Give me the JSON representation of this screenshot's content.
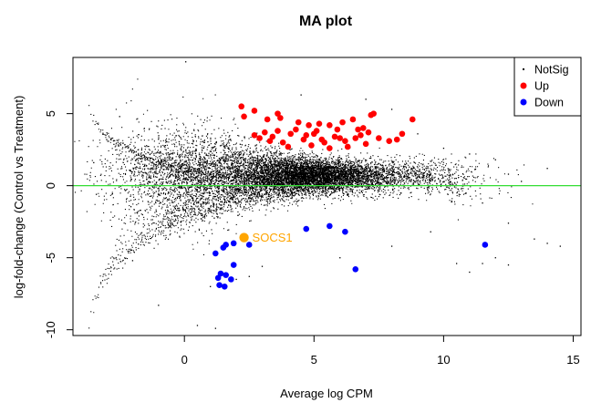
{
  "chart_data": {
    "type": "scatter",
    "title": "MA plot",
    "xlabel": "Average log CPM",
    "ylabel": "log-fold-change (Control vs Treatment)",
    "xlim": [
      -4.3,
      15.3
    ],
    "ylim": [
      -10.4,
      8.9
    ],
    "x_ticks": [
      0,
      5,
      10,
      15
    ],
    "y_ticks": [
      -10,
      -5,
      0,
      5
    ],
    "hline": {
      "y": 0,
      "color": "#33dd33"
    },
    "legend": {
      "position": "top-right",
      "entries": [
        {
          "label": "NotSig",
          "color": "#000000"
        },
        {
          "label": "Up",
          "color": "#ff0000"
        },
        {
          "label": "Down",
          "color": "#0000ff"
        }
      ]
    },
    "series": [
      {
        "name": "NotSig",
        "color": "#000000",
        "points": [
          [
            0.05,
            8.6
          ],
          [
            -3.5,
            1.6
          ],
          [
            -3.4,
            -0.6
          ],
          [
            -3.0,
            3.2
          ],
          [
            -2.5,
            4.8
          ],
          [
            -2.0,
            -5.2
          ],
          [
            -1.0,
            -8.3
          ],
          [
            0.5,
            -9.7
          ],
          [
            1.2,
            -9.9
          ],
          [
            1.0,
            -7.0
          ],
          [
            2.0,
            -6.5
          ],
          [
            2.5,
            -6.3
          ],
          [
            3.0,
            -5.6
          ],
          [
            6.0,
            -5.0
          ],
          [
            8.0,
            -4.2
          ],
          [
            9.5,
            -3.2
          ],
          [
            10.5,
            -5.4
          ],
          [
            11.0,
            -6.0
          ],
          [
            11.5,
            -5.4
          ],
          [
            12.0,
            -5.0
          ],
          [
            12.5,
            -5.5
          ],
          [
            13.5,
            -3.7
          ],
          [
            14.0,
            -4.0
          ],
          [
            14.5,
            -4.2
          ],
          [
            12.0,
            1.8
          ],
          [
            12.5,
            0.8
          ],
          [
            13.0,
            0.3
          ],
          [
            14.0,
            1.2
          ],
          [
            11.0,
            2.2
          ],
          [
            8.0,
            5.3
          ],
          [
            7.0,
            6.0
          ],
          [
            4.5,
            6.3
          ],
          [
            9.0,
            3.6
          ],
          [
            10.0,
            2.6
          ],
          [
            11.5,
            -1.2
          ],
          [
            12.5,
            -2.6
          ]
        ]
      },
      {
        "name": "Up",
        "color": "#ff0000",
        "points": [
          [
            2.2,
            5.5
          ],
          [
            2.7,
            5.2
          ],
          [
            2.3,
            4.8
          ],
          [
            3.2,
            4.6
          ],
          [
            3.6,
            5.0
          ],
          [
            3.7,
            4.7
          ],
          [
            4.4,
            4.4
          ],
          [
            4.8,
            4.2
          ],
          [
            5.2,
            4.3
          ],
          [
            5.6,
            4.2
          ],
          [
            6.1,
            4.4
          ],
          [
            6.5,
            4.6
          ],
          [
            7.2,
            4.9
          ],
          [
            7.3,
            5.0
          ],
          [
            8.8,
            4.6
          ],
          [
            8.4,
            3.6
          ],
          [
            7.9,
            3.1
          ],
          [
            6.8,
            3.5
          ],
          [
            2.7,
            3.5
          ],
          [
            2.9,
            3.3
          ],
          [
            3.1,
            3.7
          ],
          [
            3.4,
            3.4
          ],
          [
            3.8,
            3.0
          ],
          [
            4.1,
            3.6
          ],
          [
            4.6,
            3.2
          ],
          [
            5.0,
            3.6
          ],
          [
            5.4,
            3.0
          ],
          [
            5.8,
            3.4
          ],
          [
            6.2,
            3.1
          ],
          [
            6.6,
            3.3
          ],
          [
            7.0,
            2.9
          ],
          [
            3.6,
            3.8
          ],
          [
            4.3,
            3.9
          ],
          [
            5.1,
            3.8
          ],
          [
            5.9,
            3.9
          ],
          [
            6.7,
            3.9
          ],
          [
            4.0,
            2.7
          ],
          [
            4.9,
            2.8
          ],
          [
            5.6,
            2.6
          ],
          [
            6.3,
            2.7
          ],
          [
            7.5,
            3.3
          ],
          [
            8.2,
            3.2
          ],
          [
            3.3,
            3.1
          ],
          [
            6.9,
            4.0
          ],
          [
            6.0,
            3.3
          ],
          [
            4.7,
            3.5
          ],
          [
            5.3,
            3.2
          ],
          [
            7.1,
            3.7
          ]
        ]
      },
      {
        "name": "Down",
        "color": "#0000ff",
        "points": [
          [
            1.2,
            -4.7
          ],
          [
            1.5,
            -4.3
          ],
          [
            1.9,
            -4.0
          ],
          [
            1.6,
            -4.1
          ],
          [
            2.5,
            -4.1
          ],
          [
            4.7,
            -3.0
          ],
          [
            5.6,
            -2.8
          ],
          [
            6.2,
            -3.2
          ],
          [
            6.6,
            -5.8
          ],
          [
            11.6,
            -4.1
          ],
          [
            1.3,
            -6.4
          ],
          [
            1.4,
            -6.1
          ],
          [
            1.6,
            -6.2
          ],
          [
            1.8,
            -6.5
          ],
          [
            1.9,
            -5.5
          ],
          [
            1.55,
            -7.0
          ],
          [
            1.35,
            -6.9
          ]
        ]
      }
    ],
    "highlight": {
      "label": "SOCS1",
      "x": 2.3,
      "y": -3.6,
      "color": "#ffa500"
    }
  }
}
